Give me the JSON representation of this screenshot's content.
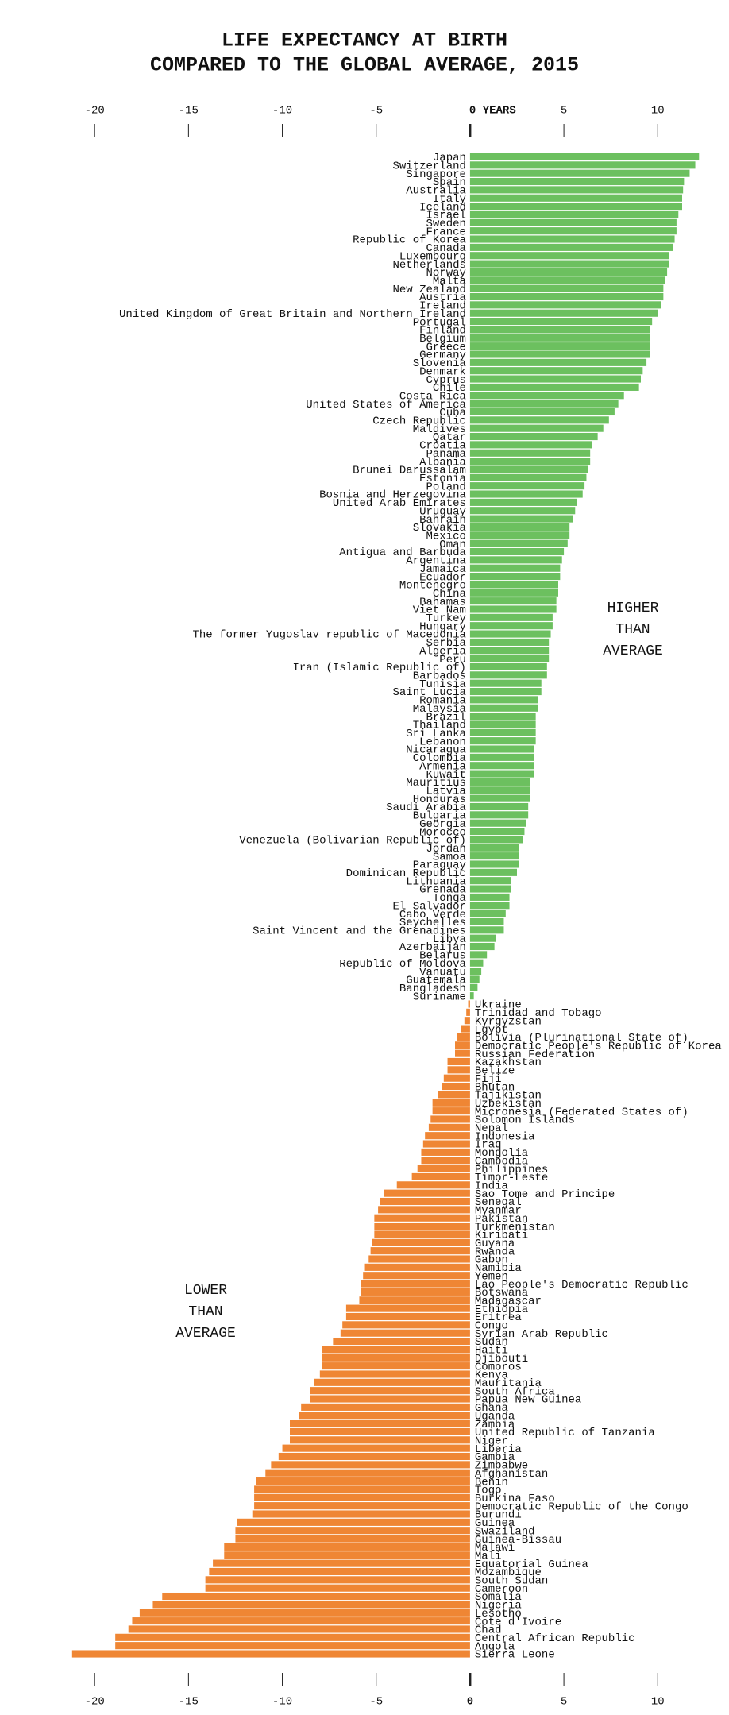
{
  "chart_data": {
    "type": "diverging-bar",
    "title": [
      "LIFE EXPECTANCY AT BIRTH",
      "COMPARED TO THE GLOBAL AVERAGE, 2015"
    ],
    "annotations": [
      {
        "lines": [
          "HIGHER",
          "THAN",
          "AVERAGE"
        ],
        "side": "positive"
      },
      {
        "lines": [
          "LOWER",
          "THAN",
          "AVERAGE"
        ],
        "side": "negative"
      }
    ],
    "positive_color": "#6cc05f",
    "negative_color": "#ef8634",
    "xlim": [
      -25,
      13.5
    ],
    "xticks_top": [
      -20,
      -15,
      -10,
      -5,
      {
        "value": 0,
        "label": "0 YEARS"
      },
      5,
      10
    ],
    "xticks": [
      -20,
      -15,
      -10,
      -5,
      0,
      5,
      10
    ],
    "categories": [
      "Japan",
      "Switzerland",
      "Singapore",
      "Spain",
      "Australia",
      "Italy",
      "Iceland",
      "Israel",
      "Sweden",
      "France",
      "Republic of Korea",
      "Canada",
      "Luxembourg",
      "Netherlands",
      "Norway",
      "Malta",
      "New Zealand",
      "Austria",
      "Ireland",
      "United Kingdom of Great Britain and Northern Ireland",
      "Portugal",
      "Finland",
      "Belgium",
      "Greece",
      "Germany",
      "Slovenia",
      "Denmark",
      "Cyprus",
      "Chile",
      "Costa Rica",
      "United States of America",
      "Cuba",
      "Czech Republic",
      "Maldives",
      "Qatar",
      "Croatia",
      "Panama",
      "Albania",
      "Brunei Darussalam",
      "Estonia",
      "Poland",
      "Bosnia and Herzegovina",
      "United Arab Emirates",
      "Uruguay",
      "Bahrain",
      "Slovakia",
      "Mexico",
      "Oman",
      "Antigua and Barbuda",
      "Argentina",
      "Jamaica",
      "Ecuador",
      "Montenegro",
      "China",
      "Bahamas",
      "Viet Nam",
      "Turkey",
      "Hungary",
      "The former Yugoslav republic of Macedonia",
      "Serbia",
      "Algeria",
      "Peru",
      "Iran (Islamic Republic of)",
      "Barbados",
      "Tunisia",
      "Saint Lucia",
      "Romania",
      "Malaysia",
      "Brazil",
      "Thailand",
      "Sri Lanka",
      "Lebanon",
      "Nicaragua",
      "Colombia",
      "Armenia",
      "Kuwait",
      "Mauritius",
      "Latvia",
      "Honduras",
      "Saudi Arabia",
      "Bulgaria",
      "Georgia",
      "Morocco",
      "Venezuela (Bolivarian Republic of)",
      "Jordan",
      "Samoa",
      "Paraguay",
      "Dominican Republic",
      "Lithuania",
      "Grenada",
      "Tonga",
      "El Salvador",
      "Cabo Verde",
      "Seychelles",
      "Saint Vincent and the Grenadines",
      "Libya",
      "Azerbaijan",
      "Belarus",
      "Republic of Moldova",
      "Vanuatu",
      "Guatemala",
      "Bangladesh",
      "Suriname",
      "Ukraine",
      "Trinidad and Tobago",
      "Kyrgyzstan",
      "Egypt",
      "Bolivia (Plurinational State of)",
      "Democratic People's Republic of Korea",
      "Russian Federation",
      "Kazakhstan",
      "Belize",
      "Fiji",
      "Bhutan",
      "Tajikistan",
      "Uzbekistan",
      "Micronesia (Federated States of)",
      "Solomon Islands",
      "Nepal",
      "Indonesia",
      "Iraq",
      "Mongolia",
      "Cambodia",
      "Philippines",
      "Timor-Leste",
      "India",
      "Sao Tome and Principe",
      "Senegal",
      "Myanmar",
      "Pakistan",
      "Turkmenistan",
      "Kiribati",
      "Guyana",
      "Rwanda",
      "Gabon",
      "Namibia",
      "Yemen",
      "Lao People's Democratic Republic",
      "Botswana",
      "Madagascar",
      "Ethiopia",
      "Eritrea",
      "Congo",
      "Syrian Arab Republic",
      "Sudan",
      "Haiti",
      "Djibouti",
      "Comoros",
      "Kenya",
      "Mauritania",
      "South Africa",
      "Papua New Guinea",
      "Ghana",
      "Uganda",
      "Zambia",
      "United Republic of Tanzania",
      "Niger",
      "Liberia",
      "Gambia",
      "Zimbabwe",
      "Afghanistan",
      "Benin",
      "Togo",
      "Burkina Faso",
      "Democratic Republic of the Congo",
      "Burundi",
      "Guinea",
      "Swaziland",
      "Guinea-Bissau",
      "Malawi",
      "Mali",
      "Equatorial Guinea",
      "Mozambique",
      "South Sudan",
      "Cameroon",
      "Somalia",
      "Nigeria",
      "Lesotho",
      "Cote d'Ivoire",
      "Chad",
      "Central African Republic",
      "Angola",
      "Sierra Leone"
    ],
    "values": [
      12.2,
      12.0,
      11.7,
      11.4,
      11.35,
      11.3,
      11.3,
      11.1,
      11.0,
      11.0,
      10.9,
      10.8,
      10.6,
      10.6,
      10.5,
      10.4,
      10.3,
      10.3,
      10.2,
      10.0,
      9.7,
      9.6,
      9.6,
      9.6,
      9.6,
      9.4,
      9.2,
      9.1,
      9.0,
      8.2,
      7.9,
      7.7,
      7.4,
      7.1,
      6.8,
      6.5,
      6.4,
      6.4,
      6.3,
      6.2,
      6.1,
      6.0,
      5.7,
      5.6,
      5.5,
      5.3,
      5.3,
      5.2,
      5.0,
      4.9,
      4.8,
      4.8,
      4.7,
      4.7,
      4.6,
      4.6,
      4.4,
      4.4,
      4.3,
      4.2,
      4.2,
      4.2,
      4.1,
      4.1,
      3.8,
      3.8,
      3.6,
      3.6,
      3.5,
      3.5,
      3.5,
      3.5,
      3.4,
      3.4,
      3.4,
      3.4,
      3.2,
      3.2,
      3.2,
      3.1,
      3.1,
      3.0,
      2.9,
      2.8,
      2.6,
      2.6,
      2.6,
      2.5,
      2.2,
      2.2,
      2.1,
      2.1,
      1.9,
      1.8,
      1.8,
      1.4,
      1.3,
      0.9,
      0.7,
      0.6,
      0.5,
      0.4,
      0.2,
      -0.1,
      -0.2,
      -0.3,
      -0.5,
      -0.7,
      -0.8,
      -0.8,
      -1.2,
      -1.2,
      -1.4,
      -1.5,
      -1.7,
      -2.0,
      -2.0,
      -2.1,
      -2.2,
      -2.4,
      -2.5,
      -2.6,
      -2.6,
      -2.8,
      -3.1,
      -3.9,
      -4.6,
      -4.8,
      -4.9,
      -5.1,
      -5.1,
      -5.1,
      -5.2,
      -5.3,
      -5.4,
      -5.6,
      -5.7,
      -5.8,
      -5.8,
      -5.9,
      -6.6,
      -6.6,
      -6.8,
      -6.9,
      -7.3,
      -7.9,
      -7.9,
      -7.9,
      -8.0,
      -8.3,
      -8.5,
      -8.5,
      -9.0,
      -9.1,
      -9.6,
      -9.6,
      -9.6,
      -10.0,
      -10.2,
      -10.6,
      -10.9,
      -11.4,
      -11.5,
      -11.5,
      -11.5,
      -11.6,
      -12.4,
      -12.5,
      -12.5,
      -13.1,
      -13.1,
      -13.7,
      -13.9,
      -14.1,
      -14.1,
      -16.4,
      -16.9,
      -17.6,
      -18.0,
      -18.2,
      -18.9,
      -18.9,
      -21.2
    ]
  }
}
